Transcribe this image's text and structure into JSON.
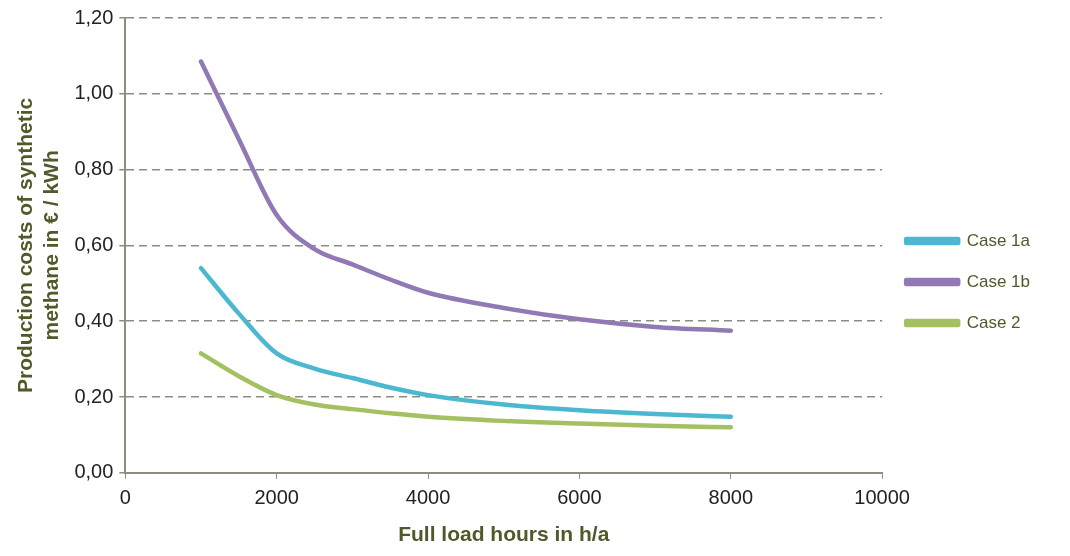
{
  "chart_data": {
    "type": "line",
    "xlabel": "Full load hours in h/a",
    "ylabel": "Production costs of synthetic methane in  € / kWh",
    "x": [
      1000,
      1500,
      2000,
      2500,
      3000,
      3500,
      4000,
      5000,
      6000,
      7000,
      8000
    ],
    "series": [
      {
        "name": "Case 1a",
        "color": "#4bb8d0",
        "values": [
          0.54,
          0.42,
          0.315,
          0.275,
          0.25,
          0.225,
          0.205,
          0.18,
          0.165,
          0.155,
          0.148
        ]
      },
      {
        "name": "Case 1b",
        "color": "#9079b4",
        "values": [
          1.085,
          0.88,
          0.68,
          0.59,
          0.55,
          0.51,
          0.475,
          0.435,
          0.405,
          0.385,
          0.375
        ]
      },
      {
        "name": "Case 2",
        "color": "#a4c161",
        "values": [
          0.315,
          0.255,
          0.205,
          0.18,
          0.168,
          0.157,
          0.148,
          0.137,
          0.13,
          0.124,
          0.12
        ]
      }
    ],
    "xlim": [
      0,
      10000
    ],
    "xticks": [
      0,
      2000,
      4000,
      6000,
      8000,
      10000
    ],
    "ylim": [
      0,
      1.2
    ],
    "yticks": [
      {
        "value": 0,
        "label": "0,00"
      },
      {
        "value": 0.2,
        "label": "0,20"
      },
      {
        "value": 0.4,
        "label": "0,40"
      },
      {
        "value": 0.6,
        "label": "0,60"
      },
      {
        "value": 0.8,
        "label": "0,80"
      },
      {
        "value": 1,
        "label": "1,00"
      },
      {
        "value": 1.2,
        "label": "1,20"
      }
    ],
    "grid": "y",
    "legend": "right",
    "marker": "none",
    "line_style": "solid"
  }
}
